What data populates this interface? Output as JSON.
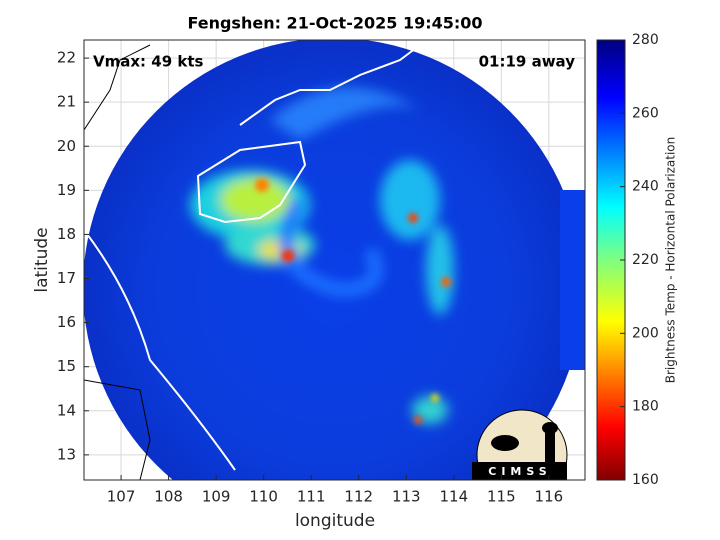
{
  "chart_data": {
    "type": "image",
    "title": "Fengshen: 21-Oct-2025 19:45:00",
    "annotations": [
      "Vmax: 49 kts",
      "01:19 away"
    ],
    "xlabel": "longitude",
    "ylabel": "latitude",
    "xlim": [
      106.22,
      116.76
    ],
    "ylim": [
      12.43,
      22.41
    ],
    "xticks": [
      107,
      108,
      109,
      110,
      111,
      112,
      113,
      114,
      115,
      116
    ],
    "yticks": [
      13,
      14,
      15,
      16,
      17,
      18,
      19,
      20,
      21,
      22
    ],
    "grid": true,
    "colorbar": {
      "label": "Brightness Temp - Horizontal Polarization",
      "lim": [
        160,
        280
      ],
      "ticks": [
        160,
        180,
        200,
        220,
        240,
        260,
        280
      ]
    },
    "logo": "CIMSS"
  }
}
